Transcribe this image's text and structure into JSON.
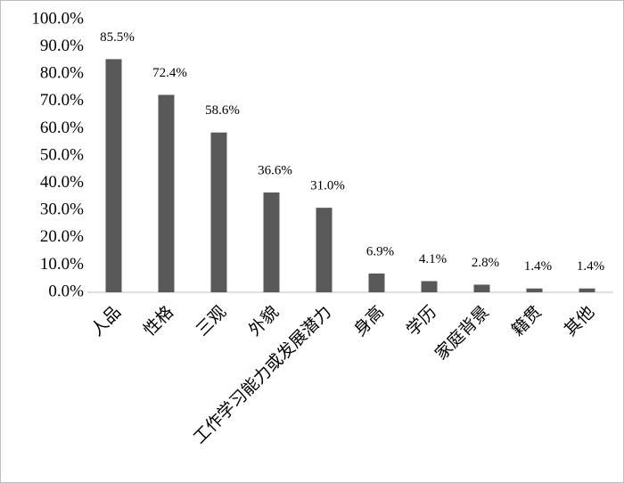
{
  "chart_data": {
    "type": "bar",
    "categories": [
      "人品",
      "性格",
      "三观",
      "外貌",
      "工作学习能力或发展潜力",
      "身高",
      "学历",
      "家庭背景",
      "籍贯",
      "其他"
    ],
    "values": [
      85.5,
      72.4,
      58.6,
      36.6,
      31.0,
      6.9,
      4.1,
      2.8,
      1.4,
      1.4
    ],
    "value_labels": [
      "85.5%",
      "72.4%",
      "58.6%",
      "36.6%",
      "31.0%",
      "6.9%",
      "4.1%",
      "2.8%",
      "1.4%",
      "1.4%"
    ],
    "color": "#595959",
    "ylim": [
      0,
      100
    ],
    "yticks": [
      {
        "value": 0,
        "label": "0.0%"
      },
      {
        "value": 10,
        "label": "10.0%"
      },
      {
        "value": 20,
        "label": "20.0%"
      },
      {
        "value": 30,
        "label": "30.0%"
      },
      {
        "value": 40,
        "label": "40.0%"
      },
      {
        "value": 50,
        "label": "50.0%"
      },
      {
        "value": 60,
        "label": "60.0%"
      },
      {
        "value": 70,
        "label": "70.0%"
      },
      {
        "value": 80,
        "label": "80.0%"
      },
      {
        "value": 90,
        "label": "90.0%"
      },
      {
        "value": 100,
        "label": "100.0%"
      }
    ],
    "grid": false
  }
}
